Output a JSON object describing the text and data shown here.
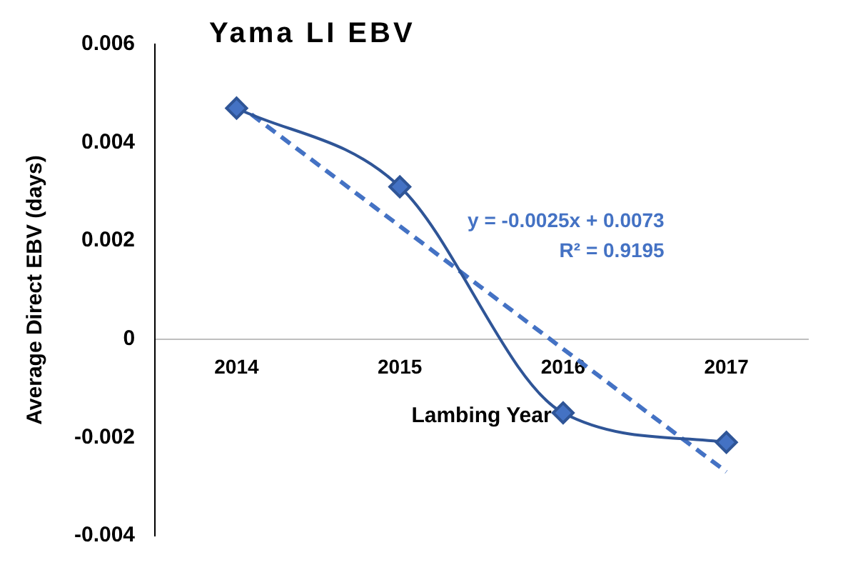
{
  "chart_data": {
    "type": "line",
    "title": "Yama LI EBV",
    "xlabel": "Lambing Year",
    "ylabel": "Average Direct EBV (days)",
    "categories": [
      "2014",
      "2015",
      "2016",
      "2017"
    ],
    "series": [
      {
        "color": "#2f5597",
        "values": [
          0.0047,
          0.0031,
          -0.0015,
          -0.0021
        ],
        "marker": "diamond",
        "line_style": "solid"
      },
      {
        "color": "#4472c4",
        "values": [
          0.0048,
          0.0023,
          -0.0002,
          -0.0027
        ],
        "marker": "none",
        "line_style": "dashed"
      }
    ],
    "ylim": [
      -0.004,
      0.006
    ],
    "yticks": [
      -0.004,
      -0.002,
      0,
      0.002,
      0.004,
      0.006
    ],
    "grid": false,
    "legend": false,
    "annotations": [
      "y = -0.0025x + 0.0073",
      "R² = 0.9195"
    ]
  }
}
